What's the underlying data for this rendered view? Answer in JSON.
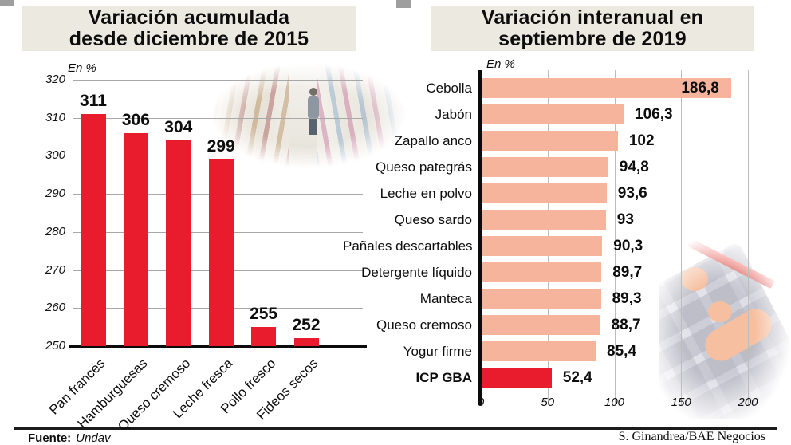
{
  "header": {
    "left": {
      "line1": "Variación acumulada",
      "line2": "desde diciembre de 2015"
    },
    "right": {
      "line1": "Variación interanual en",
      "line2": "septiembre de 2019"
    }
  },
  "footer": {
    "source_label": "Fuente:",
    "source_value": "Undav",
    "credit": "S. Ginandrea/BAE Negocios"
  },
  "colors": {
    "bar_red": "#e81c2d",
    "bar_salmon": "#f6b49c",
    "title_bg": "#ece9e0",
    "grid_left": "#a8a8a8",
    "grid_right": "#bdbdbd"
  },
  "chart_data": [
    {
      "type": "bar",
      "title": "Variación acumulada desde diciembre de 2015",
      "unit_label": "En %",
      "categories": [
        "Pan francés",
        "Hamburguesas",
        "Queso cremoso",
        "Leche fresca",
        "Pollo fresco",
        "Fideos secos"
      ],
      "values": [
        311,
        306,
        304,
        299,
        255,
        252
      ],
      "value_labels": [
        "311",
        "306",
        "304",
        "299",
        "255",
        "252"
      ],
      "ylim": [
        250,
        320
      ],
      "yticks": [
        320,
        310,
        300,
        290,
        280,
        270,
        260,
        250
      ],
      "grid": "horizontal",
      "bar_color": "#e81c2d",
      "legend": "none"
    },
    {
      "type": "bar",
      "orientation": "horizontal",
      "title": "Variación interanual en septiembre de 2019",
      "unit_label": "En %",
      "categories": [
        "Cebolla",
        "Jabón",
        "Zapallo anco",
        "Queso pategrás",
        "Leche en polvo",
        "Queso sardo",
        "Pañales descartables",
        "Detergente líquido",
        "Manteca",
        "Queso cremoso",
        "Yogur firme",
        "ICP GBA"
      ],
      "values": [
        186.8,
        106.3,
        102,
        94.8,
        93.6,
        93,
        90.3,
        89.7,
        89.3,
        88.7,
        85.4,
        52.4
      ],
      "value_labels": [
        "186,8",
        "106,3",
        "102",
        "94,8",
        "93,6",
        "93",
        "90,3",
        "89,7",
        "89,3",
        "88,7",
        "85,4",
        "52,4"
      ],
      "xlim": [
        0,
        200
      ],
      "xticks": [
        0,
        50,
        100,
        150,
        200
      ],
      "grid": "vertical",
      "bar_color": "#f6b49c",
      "highlight_category": "ICP GBA",
      "highlight_color": "#e81c2d",
      "value_label_inside": [
        true,
        false,
        false,
        false,
        false,
        false,
        false,
        false,
        false,
        false,
        false,
        false
      ],
      "legend": "none"
    }
  ]
}
